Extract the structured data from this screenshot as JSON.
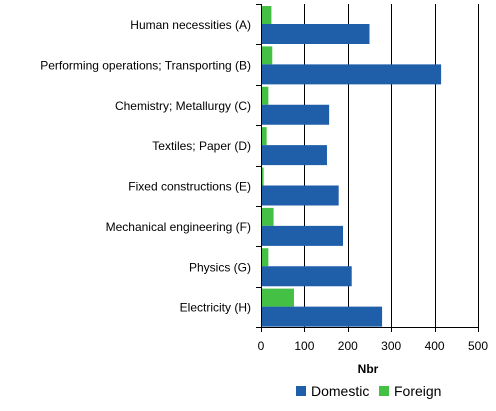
{
  "chart_data": {
    "type": "bar",
    "orientation": "horizontal",
    "categories": [
      "Human necessities (A)",
      "Performing operations; Transporting (B)",
      "Chemistry; Metallurgy  (C)",
      "Textiles; Paper (D)",
      "Fixed constructions (E)",
      "Mechanical engineering (F)",
      "Physics (G)",
      "Electricity (H)"
    ],
    "series": [
      {
        "name": "Domestic",
        "color": "#1f5faa",
        "values": [
          250,
          415,
          157,
          152,
          179,
          189,
          209,
          279
        ]
      },
      {
        "name": "Foreign",
        "color": "#44c044",
        "values": [
          24,
          26,
          17,
          13,
          6,
          29,
          17,
          76
        ]
      }
    ],
    "xlabel": "Nbr",
    "xlim": [
      0,
      500
    ],
    "xticks": [
      0,
      100,
      200,
      300,
      400,
      500
    ],
    "grid": "vertical",
    "legend_position": "bottom"
  }
}
